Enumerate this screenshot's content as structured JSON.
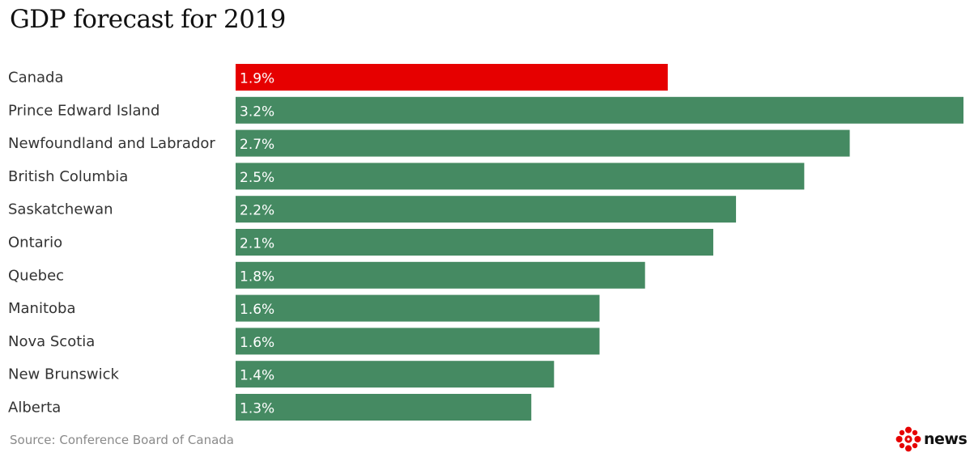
{
  "chart_data": {
    "type": "bar",
    "orientation": "horizontal",
    "title": "GDP forecast for 2019",
    "categories": [
      "Canada",
      "Prince Edward Island",
      "Newfoundland and Labrador",
      "British Columbia",
      "Saskatchewan",
      "Ontario",
      "Quebec",
      "Manitoba",
      "Nova Scotia",
      "New Brunswick",
      "Alberta"
    ],
    "values": [
      1.9,
      3.2,
      2.7,
      2.5,
      2.2,
      2.1,
      1.8,
      1.6,
      1.6,
      1.4,
      1.3
    ],
    "value_labels": [
      "1.9%",
      "3.2%",
      "2.7%",
      "2.5%",
      "2.2%",
      "2.1%",
      "1.8%",
      "1.6%",
      "1.6%",
      "1.4%",
      "1.3%"
    ],
    "highlight_category": "Canada",
    "colors": {
      "highlight": "#e60000",
      "default": "#458a62"
    },
    "xlim": [
      0,
      3.2
    ],
    "grid": false
  },
  "footer": {
    "source": "Source: Conference Board of Canada",
    "brand": "news",
    "brand_icon": "cbc-gem-icon"
  }
}
